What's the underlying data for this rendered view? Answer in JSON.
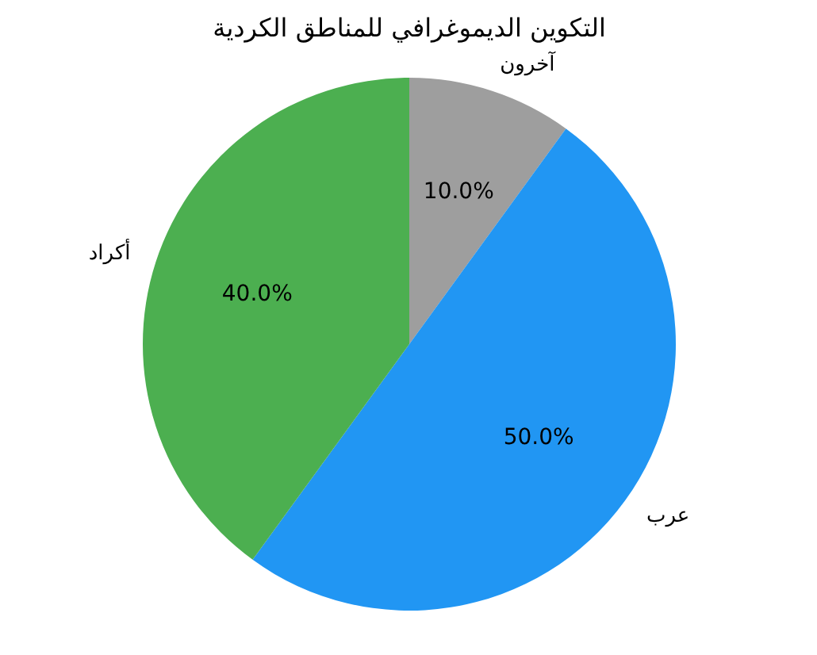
{
  "chart_data": {
    "type": "pie",
    "title": "التكوين الديموغرافي للمناطق الكردية",
    "categories": [
      "آخرون",
      "عرب",
      "أكراد"
    ],
    "values": [
      10,
      50,
      40
    ],
    "colors": [
      "#9e9e9e",
      "#2196f3",
      "#4caf50"
    ],
    "value_labels": [
      "10.0%",
      "50.0%",
      "40.0%"
    ]
  }
}
